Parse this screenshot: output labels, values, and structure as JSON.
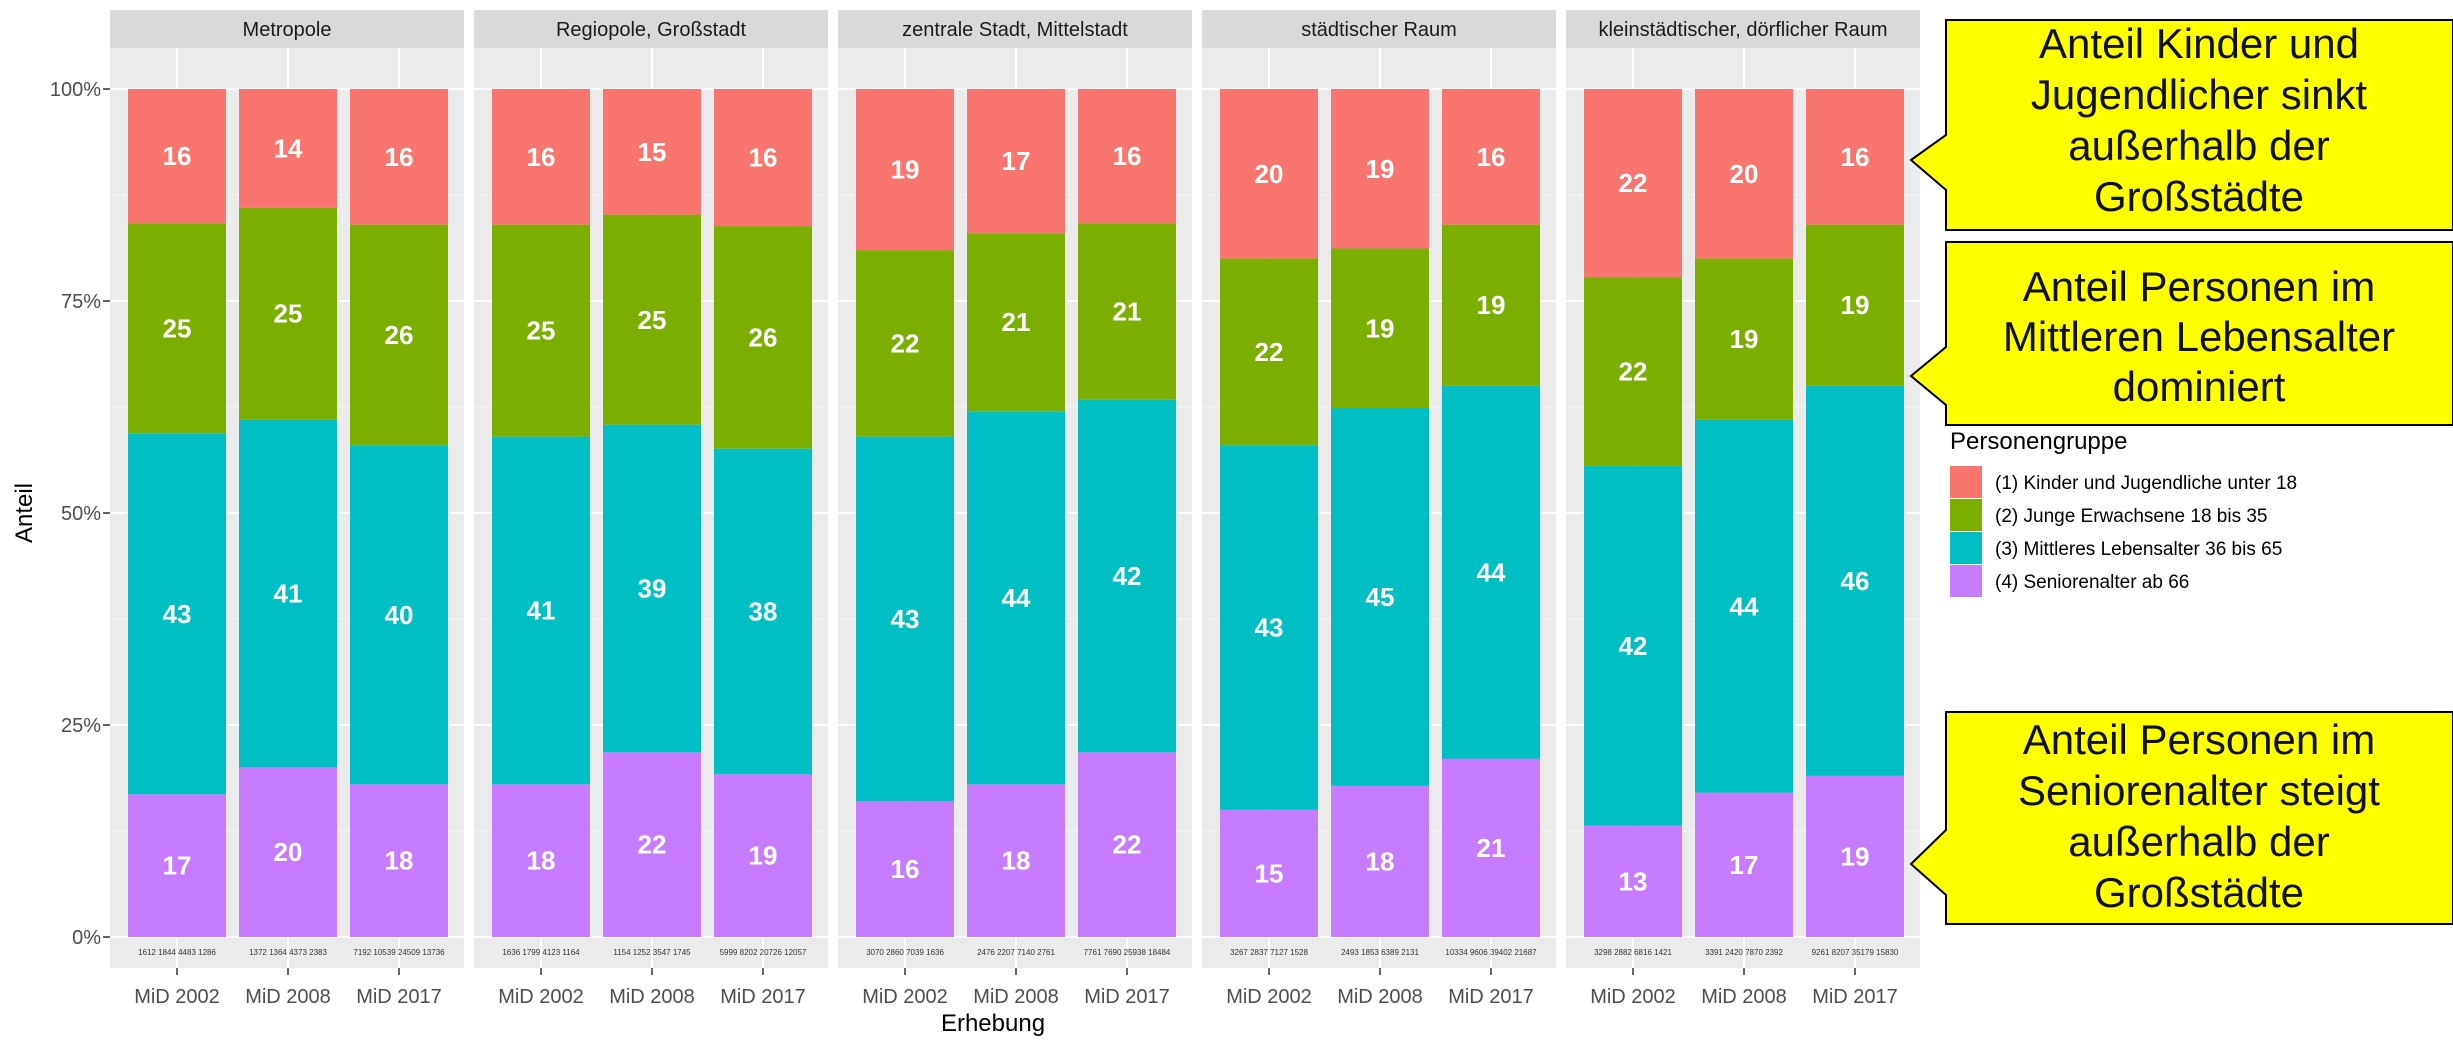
{
  "chart_data": {
    "type": "bar",
    "stacked": true,
    "ylabel": "Anteil",
    "xlabel": "Erhebung",
    "ylim": [
      0,
      100
    ],
    "yticks": [
      "0%",
      "25%",
      "50%",
      "75%",
      "100%"
    ],
    "grid": true,
    "categories": [
      "MiD 2002",
      "MiD 2008",
      "MiD 2017"
    ],
    "legend": {
      "title": "Personengruppe",
      "position": "right",
      "entries": [
        {
          "label": "(1) Kinder und Jugendliche unter 18",
          "color": "#F8766D"
        },
        {
          "label": "(2) Junge Erwachsene 18 bis 35",
          "color": "#7CAE00"
        },
        {
          "label": "(3) Mittleres Lebensalter 36 bis 65",
          "color": "#00BFC4"
        },
        {
          "label": "(4) Seniorenalter ab 66",
          "color": "#C77CFF"
        }
      ]
    },
    "facets": [
      {
        "title": "Metropole",
        "bars": [
          {
            "category": "MiD 2002",
            "values": [
              16,
              25,
              43,
              17
            ],
            "counts": "1612 1844 4483 1286"
          },
          {
            "category": "MiD 2008",
            "values": [
              14,
              25,
              41,
              20
            ],
            "counts": "1372 1364 4373 2383"
          },
          {
            "category": "MiD 2017",
            "values": [
              16,
              26,
              40,
              18
            ],
            "counts": "7192 10539 24509 13736"
          }
        ]
      },
      {
        "title": "Regiopole, Großstadt",
        "bars": [
          {
            "category": "MiD 2002",
            "values": [
              16,
              25,
              41,
              18
            ],
            "counts": "1636 1799 4123 1164"
          },
          {
            "category": "MiD 2008",
            "values": [
              15,
              25,
              39,
              22
            ],
            "counts": "1154 1252 3547 1745"
          },
          {
            "category": "MiD 2017",
            "values": [
              16,
              26,
              38,
              19
            ],
            "counts": "5999 8202 20726 12057"
          }
        ]
      },
      {
        "title": "zentrale Stadt, Mittelstadt",
        "bars": [
          {
            "category": "MiD 2002",
            "values": [
              19,
              22,
              43,
              16
            ],
            "counts": "3070 2860 7039 1636"
          },
          {
            "category": "MiD 2008",
            "values": [
              17,
              21,
              44,
              18
            ],
            "counts": "2476 2207 7140 2761"
          },
          {
            "category": "MiD 2017",
            "values": [
              16,
              21,
              42,
              22
            ],
            "counts": "7761 7690 25938 18484"
          }
        ]
      },
      {
        "title": "städtischer Raum",
        "bars": [
          {
            "category": "MiD 2002",
            "values": [
              20,
              22,
              43,
              15
            ],
            "counts": "3267 2837 7127 1528"
          },
          {
            "category": "MiD 2008",
            "values": [
              19,
              19,
              45,
              18
            ],
            "counts": "2493 1853 6389 2131"
          },
          {
            "category": "MiD 2017",
            "values": [
              16,
              19,
              44,
              21
            ],
            "counts": "10334 9606 39402 21687"
          }
        ]
      },
      {
        "title": "kleinstädtischer, dörflicher Raum",
        "bars": [
          {
            "category": "MiD 2002",
            "values": [
              22,
              22,
              42,
              13
            ],
            "counts": "3298 2882 6816 1421"
          },
          {
            "category": "MiD 2008",
            "values": [
              20,
              19,
              44,
              17
            ],
            "counts": "3391 2420 7870 2392"
          },
          {
            "category": "MiD 2017",
            "values": [
              16,
              19,
              46,
              19
            ],
            "counts": "9261 8207 35179 15830"
          }
        ]
      }
    ],
    "annotations": [
      "Anteil Kinder und Jugendlicher sinkt außerhalb der Großstädte",
      "Anteil Personen im Mittleren Lebensalter dominiert",
      "Anteil Personen im Seniorenalter steigt außerhalb der Großstädte"
    ]
  },
  "callouts": [
    {
      "lines": [
        "Anteil Kinder und",
        "Jugendlicher sinkt",
        "außerhalb der",
        "Großstädte"
      ],
      "color": "#FFFF00"
    },
    {
      "lines": [
        "Anteil Personen im",
        "Mittleren Lebensalter",
        "dominiert"
      ],
      "color": "#FFFF00"
    },
    {
      "lines": [
        "Anteil Personen im",
        "Seniorenalter steigt",
        "außerhalb der",
        "Großstädte"
      ],
      "color": "#FFFF00"
    }
  ]
}
